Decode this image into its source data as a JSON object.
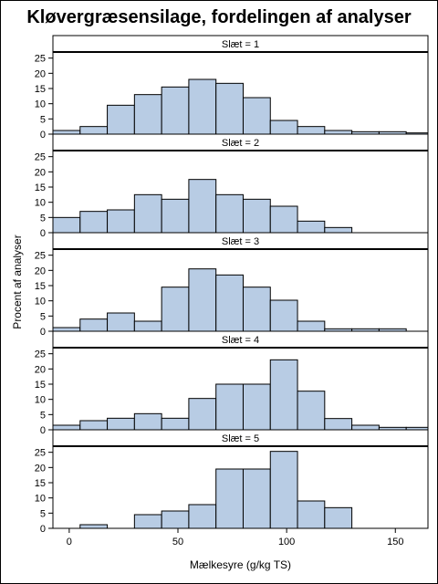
{
  "chart_data": {
    "type": "bar",
    "title": "Kløvergræsensilage, fordelingen af analyser",
    "xlabel": "Mælkesyre (g/kg TS)",
    "ylabel": "Procent af analyser",
    "xlim": [
      -7.5,
      165
    ],
    "ylim": [
      0,
      27
    ],
    "x_ticks": [
      0,
      50,
      100,
      150
    ],
    "y_ticks": [
      0,
      5,
      10,
      15,
      20,
      25
    ],
    "bin_width": 12.5,
    "bin_starts": [
      -7.5,
      5,
      17.5,
      30,
      42.5,
      55,
      67.5,
      80,
      92.5,
      105,
      117.5,
      130,
      142.5,
      155
    ],
    "bar_color": "#b8cce4",
    "panels": [
      {
        "label": "Slæt = 1",
        "values": [
          1.2,
          2.5,
          9.5,
          13,
          15.5,
          18,
          16.7,
          12,
          4.5,
          2.5,
          1.2,
          0.8,
          0.8,
          0.4
        ]
      },
      {
        "label": "Slæt = 2",
        "values": [
          5,
          7,
          7.5,
          12.5,
          11,
          17.5,
          12.5,
          11,
          8.7,
          3.8,
          1.7,
          0,
          0,
          0
        ]
      },
      {
        "label": "Slæt = 3",
        "values": [
          1.2,
          4,
          6,
          3.3,
          14.5,
          20.5,
          18.5,
          14.5,
          10.2,
          3.3,
          0.8,
          0.8,
          0.8,
          0
        ]
      },
      {
        "label": "Slæt = 4",
        "values": [
          1.5,
          3,
          3.8,
          5.3,
          3.8,
          10.3,
          15,
          15,
          23,
          12.7,
          3.7,
          1.5,
          0.8,
          0.8
        ]
      },
      {
        "label": "Slæt = 5",
        "values": [
          0,
          1.2,
          0,
          4.5,
          5.7,
          7.8,
          19.5,
          19.5,
          25.3,
          9,
          6.8,
          0,
          0,
          0
        ]
      }
    ]
  }
}
